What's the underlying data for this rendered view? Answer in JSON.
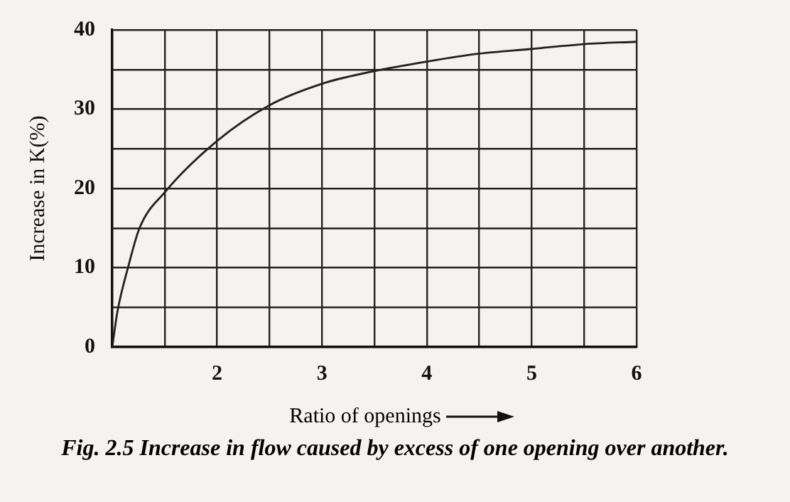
{
  "chart_data": {
    "type": "line",
    "xlabel": "Ratio of openings",
    "ylabel": "Increase in K(%)",
    "annotations": [
      "Fig. 2.5 Increase in flow caused by excess of one opening over another."
    ],
    "x": [
      1,
      1.05,
      1.15,
      1.26,
      1.5,
      2,
      2.5,
      3,
      3.5,
      4,
      4.5,
      5,
      5.5,
      6
    ],
    "series": [
      {
        "color": "#222222",
        "values": [
          0,
          4.5,
          10,
          15,
          19.5,
          26,
          30.5,
          33.2,
          34.8,
          36,
          37,
          37.6,
          38.2,
          38.5
        ]
      }
    ],
    "xlim": [
      1,
      6
    ],
    "xticks": [
      {
        "value": 1,
        "label": null
      },
      {
        "value": 1.5,
        "label": null
      },
      2,
      {
        "value": 2.5,
        "label": null
      },
      3,
      {
        "value": 3.5,
        "label": null
      },
      4,
      {
        "value": 4.5,
        "label": null
      },
      5,
      {
        "value": 5.5,
        "label": null
      },
      6
    ],
    "ylim": [
      0,
      40
    ],
    "yticks": [
      0,
      {
        "value": 5,
        "label": null
      },
      10,
      {
        "value": 15,
        "label": null
      },
      20,
      {
        "value": 25,
        "label": null
      },
      30,
      {
        "value": 35,
        "label": null
      },
      40
    ],
    "grid": true,
    "legend": false,
    "marker": "none",
    "line_style": "solid"
  }
}
